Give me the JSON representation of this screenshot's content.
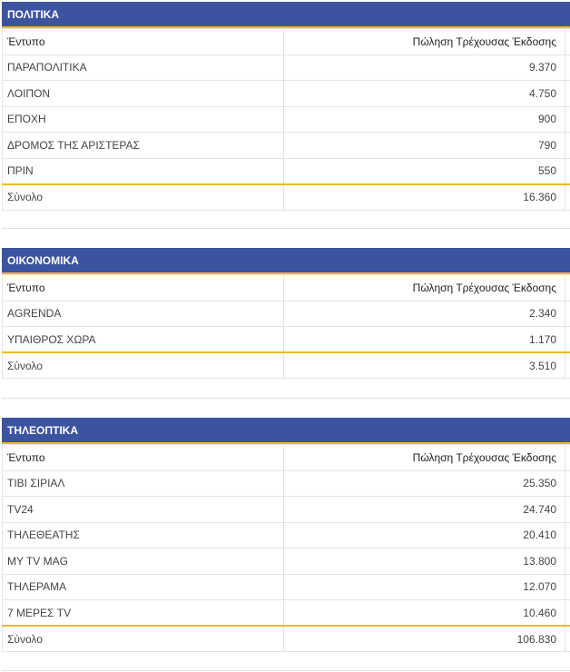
{
  "sections": [
    {
      "title": "ΠΟΛΙΤΙΚΑ",
      "col_name": "Έντυπο",
      "col_value": "Πώληση Τρέχουσας Έκδοσης",
      "rows": [
        {
          "name": "ΠΑΡΑΠΟΛΙΤΙΚΑ",
          "value": "9.370"
        },
        {
          "name": "ΛΟΙΠΟΝ",
          "value": "4.750"
        },
        {
          "name": "ΕΠΟΧΗ",
          "value": "900"
        },
        {
          "name": "ΔΡΟΜΟΣ ΤΗΣ ΑΡΙΣΤΕΡΑΣ",
          "value": "790"
        },
        {
          "name": "ΠΡΙΝ",
          "value": "550"
        }
      ],
      "total_label": "Σύνολο",
      "total_value": "16.360"
    },
    {
      "title": "ΟΙΚΟΝΟΜΙΚΑ",
      "col_name": "Έντυπο",
      "col_value": "Πώληση Τρέχουσας Έκδοσης",
      "rows": [
        {
          "name": "AGRENDA",
          "value": "2.340"
        },
        {
          "name": "ΥΠΑΙΘΡΟΣ ΧΩΡΑ",
          "value": "1.170"
        }
      ],
      "total_label": "Σύνολο",
      "total_value": "3.510"
    },
    {
      "title": "ΤΗΛΕΟΠΤΙΚΑ",
      "col_name": "Έντυπο",
      "col_value": "Πώληση Τρέχουσας Έκδοσης",
      "rows": [
        {
          "name": "ΤΙΒΙ ΣΙΡΙΑΛ",
          "value": "25.350"
        },
        {
          "name": "TV24",
          "value": "24.740"
        },
        {
          "name": "ΤΗΛΕΘΕΑΤΗΣ",
          "value": "20.410"
        },
        {
          "name": "MY TV MAG",
          "value": "13.800"
        },
        {
          "name": "ΤΗΛΕΡΑΜΑ",
          "value": "12.070"
        },
        {
          "name": "7 ΜΕΡΕΣ TV",
          "value": "10.460"
        }
      ],
      "total_label": "Σύνολο",
      "total_value": "106.830"
    }
  ],
  "colors": {
    "header_bg": "#3c53a0",
    "accent_line": "#f1b82d",
    "grid": "#e4e4e4"
  }
}
